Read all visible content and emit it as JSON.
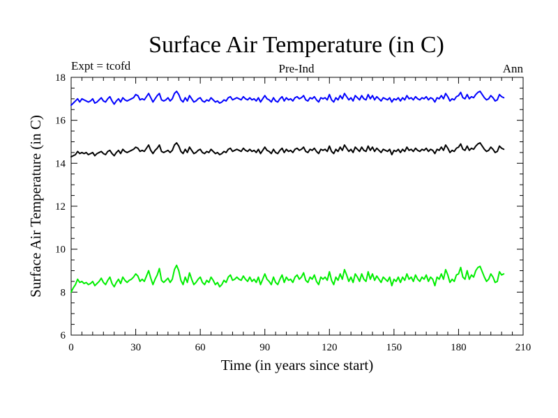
{
  "chart_data": {
    "type": "line",
    "title": "Surface Air Temperature (in C)",
    "left_label": "Expt = tcofd",
    "center_label": "Pre-Ind",
    "right_label": "Ann",
    "xlabel": "Time (in years since start)",
    "ylabel": "Surface Air Temperature (in C)",
    "xlim": [
      0,
      210
    ],
    "ylim": [
      6,
      18
    ],
    "x_ticks": [
      0,
      30,
      60,
      90,
      120,
      150,
      180,
      210
    ],
    "y_ticks": [
      6,
      8,
      10,
      12,
      14,
      16,
      18
    ],
    "x_tick_labels": [
      "0",
      "30",
      "60",
      "90",
      "120",
      "150",
      "180",
      "210"
    ],
    "y_tick_labels": [
      "6",
      "8",
      "10",
      "12",
      "14",
      "16",
      "18"
    ],
    "x_start": 0,
    "x_step": 1,
    "series": [
      {
        "name": "blue",
        "color": "#0000ff",
        "values": [
          16.7,
          16.8,
          16.9,
          17.0,
          16.85,
          17.0,
          16.95,
          16.9,
          16.85,
          16.9,
          17.0,
          16.8,
          16.85,
          16.95,
          17.05,
          16.9,
          16.85,
          17.0,
          17.1,
          16.9,
          16.75,
          16.9,
          17.0,
          16.85,
          17.05,
          16.95,
          16.9,
          16.95,
          17.0,
          17.05,
          17.2,
          17.15,
          16.95,
          17.0,
          16.95,
          17.1,
          17.25,
          17.05,
          16.85,
          17.0,
          17.15,
          17.25,
          16.95,
          16.9,
          16.95,
          17.05,
          16.9,
          17.0,
          17.25,
          17.35,
          17.2,
          16.95,
          16.85,
          17.05,
          16.9,
          17.15,
          17.0,
          16.85,
          16.9,
          17.0,
          17.05,
          16.9,
          16.85,
          16.95,
          16.9,
          17.05,
          16.95,
          16.85,
          16.9,
          16.8,
          16.85,
          16.95,
          16.9,
          17.05,
          17.1,
          16.95,
          17.0,
          17.05,
          17.0,
          16.95,
          17.1,
          17.0,
          16.95,
          17.05,
          16.95,
          17.0,
          16.9,
          17.05,
          16.85,
          17.0,
          17.15,
          17.0,
          16.95,
          16.85,
          17.05,
          16.9,
          16.85,
          17.0,
          17.1,
          16.9,
          17.05,
          16.95,
          17.0,
          16.9,
          17.05,
          17.1,
          17.0,
          17.05,
          17.15,
          16.95,
          16.9,
          17.05,
          17.0,
          17.1,
          16.95,
          16.85,
          17.05,
          17.0,
          17.05,
          16.95,
          17.2,
          16.95,
          16.85,
          17.05,
          16.95,
          17.15,
          17.0,
          17.25,
          17.1,
          16.95,
          17.05,
          16.9,
          17.15,
          17.05,
          16.95,
          17.15,
          17.0,
          16.95,
          17.2,
          17.0,
          17.15,
          16.95,
          17.1,
          17.0,
          16.9,
          17.05,
          17.0,
          16.95,
          17.05,
          16.85,
          17.0,
          16.95,
          17.05,
          16.9,
          17.05,
          16.95,
          17.15,
          17.0,
          17.05,
          16.95,
          17.1,
          17.0,
          16.95,
          17.05,
          17.0,
          17.1,
          16.95,
          17.05,
          17.0,
          16.85,
          17.05,
          17.0,
          17.15,
          17.0,
          17.25,
          17.1,
          16.9,
          17.0,
          16.95,
          17.1,
          17.15,
          17.3,
          17.05,
          17.0,
          17.2,
          17.0,
          17.1,
          17.05,
          17.2,
          17.3,
          17.35,
          17.2,
          17.05,
          16.95,
          17.0,
          17.15,
          17.05,
          16.9,
          16.95,
          17.2,
          17.1,
          17.05
        ]
      },
      {
        "name": "black",
        "color": "#000000",
        "values": [
          14.3,
          14.35,
          14.4,
          14.55,
          14.45,
          14.5,
          14.45,
          14.5,
          14.4,
          14.45,
          14.5,
          14.35,
          14.45,
          14.5,
          14.55,
          14.45,
          14.4,
          14.55,
          14.6,
          14.45,
          14.35,
          14.5,
          14.6,
          14.45,
          14.65,
          14.55,
          14.5,
          14.55,
          14.6,
          14.65,
          14.75,
          14.7,
          14.55,
          14.6,
          14.55,
          14.7,
          14.85,
          14.6,
          14.45,
          14.6,
          14.7,
          14.85,
          14.55,
          14.5,
          14.55,
          14.6,
          14.5,
          14.6,
          14.85,
          14.95,
          14.8,
          14.55,
          14.45,
          14.65,
          14.5,
          14.75,
          14.6,
          14.45,
          14.5,
          14.6,
          14.65,
          14.5,
          14.45,
          14.55,
          14.5,
          14.65,
          14.55,
          14.45,
          14.5,
          14.4,
          14.45,
          14.55,
          14.5,
          14.65,
          14.7,
          14.55,
          14.6,
          14.65,
          14.6,
          14.55,
          14.7,
          14.6,
          14.55,
          14.65,
          14.55,
          14.6,
          14.5,
          14.65,
          14.45,
          14.6,
          14.75,
          14.6,
          14.55,
          14.45,
          14.65,
          14.5,
          14.45,
          14.6,
          14.7,
          14.5,
          14.65,
          14.55,
          14.6,
          14.5,
          14.65,
          14.7,
          14.6,
          14.65,
          14.75,
          14.55,
          14.5,
          14.65,
          14.6,
          14.7,
          14.55,
          14.45,
          14.65,
          14.6,
          14.65,
          14.55,
          14.8,
          14.55,
          14.45,
          14.65,
          14.55,
          14.75,
          14.6,
          14.85,
          14.7,
          14.55,
          14.65,
          14.5,
          14.75,
          14.65,
          14.55,
          14.75,
          14.6,
          14.55,
          14.8,
          14.6,
          14.75,
          14.55,
          14.7,
          14.6,
          14.5,
          14.65,
          14.6,
          14.55,
          14.65,
          14.4,
          14.6,
          14.55,
          14.65,
          14.5,
          14.65,
          14.55,
          14.75,
          14.6,
          14.65,
          14.55,
          14.7,
          14.6,
          14.55,
          14.65,
          14.6,
          14.7,
          14.55,
          14.65,
          14.6,
          14.45,
          14.65,
          14.6,
          14.75,
          14.6,
          14.85,
          14.7,
          14.5,
          14.6,
          14.55,
          14.7,
          14.75,
          14.9,
          14.65,
          14.6,
          14.8,
          14.6,
          14.7,
          14.65,
          14.8,
          14.9,
          14.95,
          14.8,
          14.65,
          14.55,
          14.6,
          14.75,
          14.65,
          14.5,
          14.55,
          14.8,
          14.7,
          14.65
        ]
      },
      {
        "name": "green",
        "color": "#00ee00",
        "values": [
          8.0,
          8.2,
          8.35,
          8.6,
          8.45,
          8.5,
          8.4,
          8.45,
          8.35,
          8.4,
          8.5,
          8.3,
          8.4,
          8.5,
          8.65,
          8.45,
          8.35,
          8.55,
          8.7,
          8.4,
          8.25,
          8.45,
          8.6,
          8.4,
          8.7,
          8.55,
          8.45,
          8.55,
          8.6,
          8.7,
          8.85,
          8.75,
          8.5,
          8.6,
          8.5,
          8.75,
          9.0,
          8.65,
          8.35,
          8.6,
          8.8,
          9.1,
          8.55,
          8.45,
          8.55,
          8.65,
          8.45,
          8.6,
          9.05,
          9.25,
          9.0,
          8.55,
          8.35,
          8.7,
          8.45,
          8.9,
          8.6,
          8.35,
          8.45,
          8.6,
          8.7,
          8.45,
          8.35,
          8.55,
          8.45,
          8.7,
          8.55,
          8.35,
          8.45,
          8.25,
          8.35,
          8.55,
          8.45,
          8.7,
          8.8,
          8.55,
          8.6,
          8.7,
          8.6,
          8.55,
          8.75,
          8.6,
          8.5,
          8.7,
          8.5,
          8.6,
          8.45,
          8.7,
          8.35,
          8.6,
          8.85,
          8.6,
          8.5,
          8.35,
          8.7,
          8.45,
          8.35,
          8.6,
          8.8,
          8.45,
          8.7,
          8.55,
          8.6,
          8.45,
          8.7,
          8.8,
          8.6,
          8.7,
          8.9,
          8.55,
          8.45,
          8.7,
          8.6,
          8.8,
          8.5,
          8.35,
          8.7,
          8.6,
          8.7,
          8.55,
          8.95,
          8.55,
          8.35,
          8.7,
          8.55,
          8.85,
          8.6,
          9.05,
          8.8,
          8.5,
          8.7,
          8.45,
          8.85,
          8.7,
          8.5,
          8.85,
          8.6,
          8.5,
          8.95,
          8.6,
          8.85,
          8.55,
          8.75,
          8.6,
          8.45,
          8.7,
          8.6,
          8.5,
          8.7,
          8.3,
          8.6,
          8.5,
          8.7,
          8.45,
          8.7,
          8.55,
          8.85,
          8.6,
          8.7,
          8.5,
          8.8,
          8.6,
          8.5,
          8.7,
          8.6,
          8.8,
          8.5,
          8.7,
          8.6,
          8.3,
          8.7,
          8.6,
          8.85,
          8.6,
          9.05,
          8.8,
          8.45,
          8.6,
          8.5,
          8.8,
          8.85,
          9.15,
          8.7,
          8.6,
          9.0,
          8.6,
          8.8,
          8.7,
          9.0,
          9.15,
          9.2,
          8.95,
          8.7,
          8.5,
          8.6,
          8.85,
          8.7,
          8.45,
          8.5,
          8.95,
          8.8,
          8.85
        ]
      }
    ]
  }
}
